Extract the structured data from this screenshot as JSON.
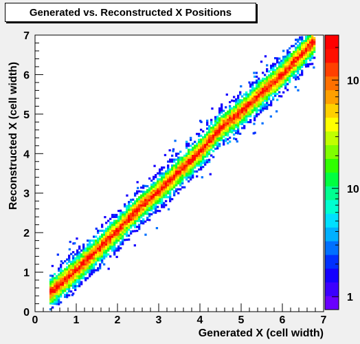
{
  "chart_data": {
    "type": "heatmap",
    "title": "Generated vs. Reconstructed X Positions",
    "xlabel": "Generated X (cell width)",
    "ylabel": "Reconstructed X (cell width)",
    "xlim": [
      0,
      7
    ],
    "ylim": [
      0,
      7
    ],
    "x_ticks": [
      "0",
      "1",
      "2",
      "3",
      "4",
      "5",
      "6",
      "7"
    ],
    "y_ticks": [
      "0",
      "1",
      "2",
      "3",
      "4",
      "5",
      "6",
      "7"
    ],
    "z_scale": "log",
    "z_tick_labels": [
      "1",
      "10",
      "10"
    ],
    "x": [
      0.5,
      1.0,
      1.5,
      2.0,
      2.5,
      3.0,
      3.5,
      4.0,
      4.5,
      5.0,
      5.5,
      6.0,
      6.5
    ],
    "y_ridge": [
      0.6,
      1.05,
      1.55,
      2.05,
      2.6,
      3.05,
      3.55,
      4.05,
      4.65,
      5.05,
      5.55,
      6.0,
      6.55
    ],
    "grid": false,
    "legend": "color scale at right",
    "colors": {
      "background": "#f0f0f0",
      "plot_background": "#ffffff",
      "palette": [
        "#6a00ff",
        "#3c00ff",
        "#1400ff",
        "#0030ff",
        "#0070ff",
        "#00b0ff",
        "#00e0ff",
        "#00ffd0",
        "#00ff90",
        "#00ff40",
        "#30ff00",
        "#80ff00",
        "#c0ff00",
        "#ffff00",
        "#ffd000",
        "#ffa000",
        "#ff7000",
        "#ff4000",
        "#ff1000",
        "#ff0000"
      ]
    }
  }
}
